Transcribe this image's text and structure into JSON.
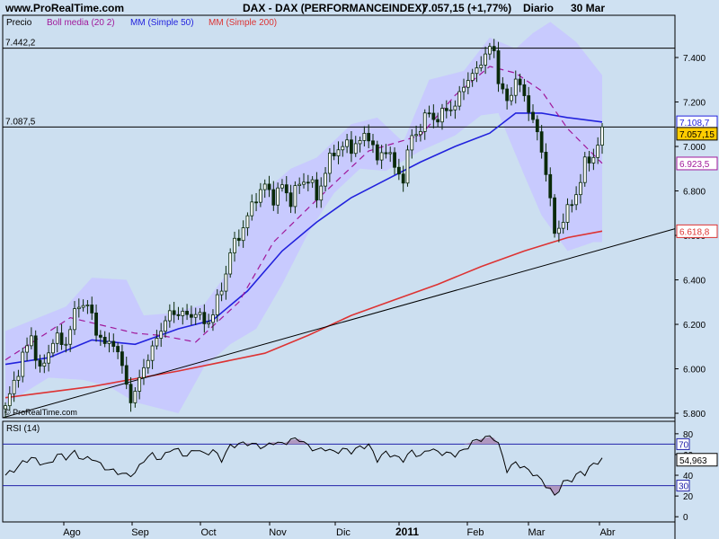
{
  "header": {
    "site": "www.ProRealTime.com",
    "symbol_line": "DAX - DAX (PERFORMANCEINDEX)",
    "last_quote": "7.057,15 (+1,77%)",
    "period": "Diario",
    "date": "30 Mar"
  },
  "legend": {
    "price": "Precio",
    "boll": "Boll media (20 2)",
    "mm50": "MM (Simple 50)",
    "mm200": "MM (Simple 200)"
  },
  "watermark": "© ProRealTime.com",
  "colors": {
    "background": "#ccdff0",
    "boll_band": "#c8c8ff",
    "boll_mid": "#a0189a",
    "mm50": "#2222dd",
    "mm200": "#dd3333",
    "candle": "#0a2a0a",
    "up_body": "#ffffff",
    "rsi_fill": "#b098c0"
  },
  "chart_data": [
    {
      "type": "candlestick",
      "name": "DAX (PERFORMANCEINDEX)",
      "y_ticks": [
        "7.400",
        "7.200",
        "7.000",
        "6.800",
        "6.600",
        "6.400",
        "6.200",
        "6.000",
        "5.800"
      ],
      "x_labels": [
        "Ago",
        "Sep",
        "Oct",
        "Nov",
        "Dic",
        "2011",
        "Feb",
        "Mar",
        "Abr"
      ],
      "ylim": [
        5780,
        7590
      ],
      "level_lines": [
        {
          "label": "7.442,2",
          "value": 7442.2
        },
        {
          "label": "7.087,5",
          "value": 7087.5
        }
      ],
      "value_tags": [
        {
          "label": "7.108,7",
          "value": 7108.7,
          "color": "#2222dd"
        },
        {
          "label": "7.057,15",
          "value": 7057.15,
          "color": "#000000",
          "fill": "#ffcc00"
        },
        {
          "label": "6.923,5",
          "value": 6923.5,
          "color": "#a0189a"
        },
        {
          "label": "6.618,8",
          "value": 6618.8,
          "color": "#dd3333"
        }
      ],
      "trendline": {
        "from": 5780,
        "to": 6630
      },
      "close_path": [
        [
          0,
          5820
        ],
        [
          3,
          6000
        ],
        [
          6,
          6150
        ],
        [
          8,
          5980
        ],
        [
          11,
          6130
        ],
        [
          14,
          6120
        ],
        [
          17,
          6300
        ],
        [
          19,
          6280
        ],
        [
          21,
          6180
        ],
        [
          23,
          6100
        ],
        [
          25,
          6130
        ],
        [
          27,
          6000
        ],
        [
          29,
          5870
        ],
        [
          30,
          5880
        ],
        [
          32,
          6020
        ],
        [
          34,
          6080
        ],
        [
          36,
          6190
        ],
        [
          38,
          6240
        ],
        [
          40,
          6260
        ],
        [
          42,
          6230
        ],
        [
          44,
          6260
        ],
        [
          46,
          6200
        ],
        [
          48,
          6250
        ],
        [
          50,
          6360
        ],
        [
          52,
          6520
        ],
        [
          54,
          6600
        ],
        [
          56,
          6680
        ],
        [
          58,
          6780
        ],
        [
          60,
          6820
        ],
        [
          62,
          6770
        ],
        [
          64,
          6820
        ],
        [
          66,
          6760
        ],
        [
          68,
          6830
        ],
        [
          70,
          6860
        ],
        [
          72,
          6770
        ],
        [
          74,
          6890
        ],
        [
          76,
          6980
        ],
        [
          78,
          7000
        ],
        [
          80,
          7000
        ],
        [
          82,
          7020
        ],
        [
          84,
          7060
        ],
        [
          86,
          6930
        ],
        [
          88,
          7000
        ],
        [
          90,
          6900
        ],
        [
          92,
          6860
        ],
        [
          94,
          7050
        ],
        [
          96,
          7080
        ],
        [
          98,
          7160
        ],
        [
          100,
          7110
        ],
        [
          102,
          7180
        ],
        [
          104,
          7170
        ],
        [
          106,
          7290
        ],
        [
          108,
          7310
        ],
        [
          110,
          7390
        ],
        [
          112,
          7430
        ],
        [
          113,
          7440
        ],
        [
          114,
          7300
        ],
        [
          116,
          7190
        ],
        [
          118,
          7310
        ],
        [
          119,
          7260
        ],
        [
          121,
          7180
        ],
        [
          123,
          7050
        ],
        [
          125,
          6900
        ],
        [
          126,
          6750
        ],
        [
          127,
          6600
        ],
        [
          129,
          6680
        ],
        [
          131,
          6740
        ],
        [
          133,
          6850
        ],
        [
          134,
          6920
        ],
        [
          136,
          6960
        ],
        [
          138,
          7057
        ]
      ],
      "series": [
        {
          "name": "MM (Simple 50)",
          "path": [
            [
              0,
              6020
            ],
            [
              10,
              6050
            ],
            [
              20,
              6130
            ],
            [
              30,
              6110
            ],
            [
              40,
              6180
            ],
            [
              48,
              6220
            ],
            [
              56,
              6350
            ],
            [
              64,
              6530
            ],
            [
              72,
              6660
            ],
            [
              80,
              6770
            ],
            [
              88,
              6850
            ],
            [
              96,
              6930
            ],
            [
              104,
              7000
            ],
            [
              112,
              7060
            ],
            [
              118,
              7150
            ],
            [
              124,
              7150
            ],
            [
              130,
              7130
            ],
            [
              138,
              7110
            ]
          ]
        },
        {
          "name": "MM (Simple 200)",
          "path": [
            [
              0,
              5870
            ],
            [
              20,
              5920
            ],
            [
              40,
              5990
            ],
            [
              60,
              6070
            ],
            [
              70,
              6150
            ],
            [
              80,
              6240
            ],
            [
              90,
              6310
            ],
            [
              100,
              6380
            ],
            [
              110,
              6460
            ],
            [
              120,
              6530
            ],
            [
              130,
              6590
            ],
            [
              138,
              6619
            ]
          ]
        },
        {
          "name": "Boll media (20 2)",
          "path": [
            [
              0,
              6040
            ],
            [
              15,
              6230
            ],
            [
              30,
              6160
            ],
            [
              36,
              6150
            ],
            [
              44,
              6120
            ],
            [
              54,
              6300
            ],
            [
              62,
              6570
            ],
            [
              72,
              6760
            ],
            [
              84,
              6980
            ],
            [
              96,
              7050
            ],
            [
              104,
              7230
            ],
            [
              112,
              7360
            ],
            [
              118,
              7330
            ],
            [
              124,
              7250
            ],
            [
              130,
              7080
            ],
            [
              138,
              6924
            ]
          ]
        }
      ],
      "boll_upper": [
        [
          0,
          6170
        ],
        [
          14,
          6280
        ],
        [
          20,
          6410
        ],
        [
          28,
          6400
        ],
        [
          32,
          6240
        ],
        [
          38,
          6250
        ],
        [
          46,
          6290
        ],
        [
          52,
          6450
        ],
        [
          56,
          6650
        ],
        [
          60,
          6800
        ],
        [
          66,
          6900
        ],
        [
          72,
          6950
        ],
        [
          80,
          7100
        ],
        [
          86,
          7130
        ],
        [
          92,
          7020
        ],
        [
          98,
          7300
        ],
        [
          106,
          7340
        ],
        [
          112,
          7490
        ],
        [
          118,
          7440
        ],
        [
          122,
          7510
        ],
        [
          126,
          7560
        ],
        [
          132,
          7470
        ],
        [
          138,
          7320
        ]
      ],
      "boll_lower": [
        [
          0,
          5840
        ],
        [
          10,
          5960
        ],
        [
          18,
          5950
        ],
        [
          24,
          5920
        ],
        [
          30,
          5850
        ],
        [
          34,
          5830
        ],
        [
          40,
          5800
        ],
        [
          46,
          6010
        ],
        [
          52,
          6110
        ],
        [
          58,
          6180
        ],
        [
          64,
          6380
        ],
        [
          70,
          6610
        ],
        [
          76,
          6790
        ],
        [
          82,
          6900
        ],
        [
          88,
          6890
        ],
        [
          96,
          6980
        ],
        [
          104,
          7050
        ],
        [
          110,
          7140
        ],
        [
          114,
          7150
        ],
        [
          120,
          6870
        ],
        [
          124,
          6690
        ],
        [
          130,
          6530
        ],
        [
          136,
          6570
        ],
        [
          138,
          6570
        ]
      ]
    },
    {
      "type": "line",
      "name": "RSI (14)",
      "y_ticks": [
        "80",
        "60",
        "40",
        "20",
        "0"
      ],
      "ylim": [
        -5,
        92
      ],
      "level_lines": [
        {
          "label": "70",
          "value": 70
        },
        {
          "label": "30",
          "value": 30
        }
      ],
      "value_tag": {
        "label": "54,963",
        "value": 54.963
      },
      "values": [
        [
          0,
          40
        ],
        [
          2,
          45
        ],
        [
          4,
          52
        ],
        [
          6,
          57
        ],
        [
          8,
          52
        ],
        [
          10,
          50
        ],
        [
          12,
          60
        ],
        [
          14,
          57
        ],
        [
          16,
          62
        ],
        [
          18,
          55
        ],
        [
          20,
          57
        ],
        [
          22,
          50
        ],
        [
          24,
          45
        ],
        [
          26,
          43
        ],
        [
          28,
          40
        ],
        [
          30,
          42
        ],
        [
          32,
          55
        ],
        [
          34,
          60
        ],
        [
          36,
          55
        ],
        [
          38,
          65
        ],
        [
          40,
          64
        ],
        [
          42,
          58
        ],
        [
          44,
          66
        ],
        [
          46,
          60
        ],
        [
          48,
          64
        ],
        [
          50,
          55
        ],
        [
          52,
          68
        ],
        [
          54,
          70
        ],
        [
          56,
          71
        ],
        [
          58,
          69
        ],
        [
          60,
          67
        ],
        [
          62,
          72
        ],
        [
          64,
          70
        ],
        [
          66,
          74
        ],
        [
          68,
          75
        ],
        [
          70,
          68
        ],
        [
          72,
          64
        ],
        [
          74,
          66
        ],
        [
          76,
          62
        ],
        [
          78,
          65
        ],
        [
          80,
          63
        ],
        [
          82,
          67
        ],
        [
          84,
          69
        ],
        [
          86,
          55
        ],
        [
          88,
          62
        ],
        [
          90,
          58
        ],
        [
          92,
          55
        ],
        [
          94,
          63
        ],
        [
          96,
          58
        ],
        [
          98,
          66
        ],
        [
          100,
          62
        ],
        [
          102,
          61
        ],
        [
          104,
          60
        ],
        [
          106,
          64
        ],
        [
          108,
          72
        ],
        [
          110,
          75
        ],
        [
          112,
          77
        ],
        [
          113,
          76
        ],
        [
          114,
          70
        ],
        [
          116,
          45
        ],
        [
          118,
          52
        ],
        [
          120,
          47
        ],
        [
          122,
          42
        ],
        [
          124,
          35
        ],
        [
          126,
          26
        ],
        [
          127,
          20
        ],
        [
          129,
          33
        ],
        [
          131,
          36
        ],
        [
          133,
          43
        ],
        [
          134,
          42
        ],
        [
          136,
          51
        ],
        [
          138,
          55
        ]
      ]
    }
  ]
}
